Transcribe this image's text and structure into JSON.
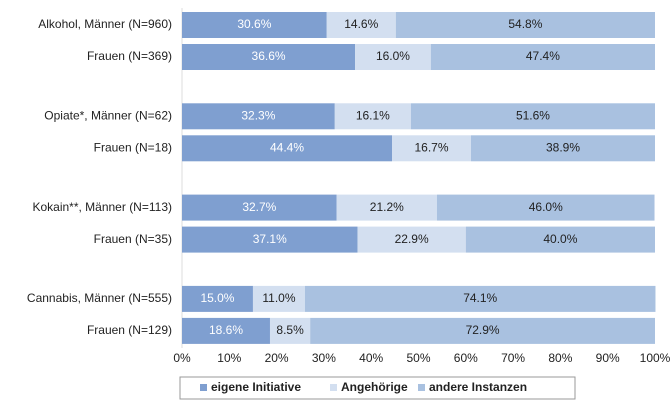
{
  "chart_data": {
    "type": "stacked-bar-horizontal",
    "categories": [
      "Alkohol, Männer (N=960)",
      "Frauen (N=369)",
      "Opiate*, Männer (N=62)",
      "Frauen (N=18)",
      "Kokain**, Männer (N=113)",
      "Frauen (N=35)",
      "Cannabis, Männer (N=555)",
      "Frauen (N=129)"
    ],
    "series": [
      {
        "name": "eigene Initiative",
        "color": "#7f9fd0",
        "values": [
          30.6,
          36.6,
          32.3,
          44.4,
          32.7,
          37.1,
          15.0,
          18.6
        ],
        "value_labels": [
          "30.6%",
          "36.6%",
          "32.3%",
          "44.4%",
          "32.7%",
          "37.1%",
          "15.0%",
          "18.6%"
        ]
      },
      {
        "name": "Angehörige",
        "color": "#d3dff0",
        "values": [
          14.6,
          16.0,
          16.1,
          16.7,
          21.2,
          22.9,
          11.0,
          8.5
        ],
        "value_labels": [
          "14.6%",
          "16.0%",
          "16.1%",
          "16.7%",
          "21.2%",
          "22.9%",
          "11.0%",
          "8.5%"
        ]
      },
      {
        "name": "andere Instanzen",
        "color": "#a9c1e0",
        "values": [
          54.8,
          47.4,
          51.6,
          38.9,
          46.0,
          40.0,
          74.1,
          72.9
        ],
        "value_labels": [
          "54.8%",
          "47.4%",
          "51.6%",
          "38.9%",
          "46.0%",
          "40.0%",
          "74.1%",
          "72.9%"
        ]
      }
    ],
    "xlim": [
      0,
      100
    ],
    "xticks": [
      {
        "value": 0,
        "label": "0%"
      },
      {
        "value": 10,
        "label": "10%"
      },
      {
        "value": 20,
        "label": "20%"
      },
      {
        "value": 30,
        "label": "30%"
      },
      {
        "value": 40,
        "label": "40%"
      },
      {
        "value": 50,
        "label": "50%"
      },
      {
        "value": 60,
        "label": "60%"
      },
      {
        "value": 70,
        "label": "70%"
      },
      {
        "value": 80,
        "label": "80%"
      },
      {
        "value": 90,
        "label": "90%"
      },
      {
        "value": 100,
        "label": "100%"
      }
    ],
    "legend": "bottom"
  }
}
